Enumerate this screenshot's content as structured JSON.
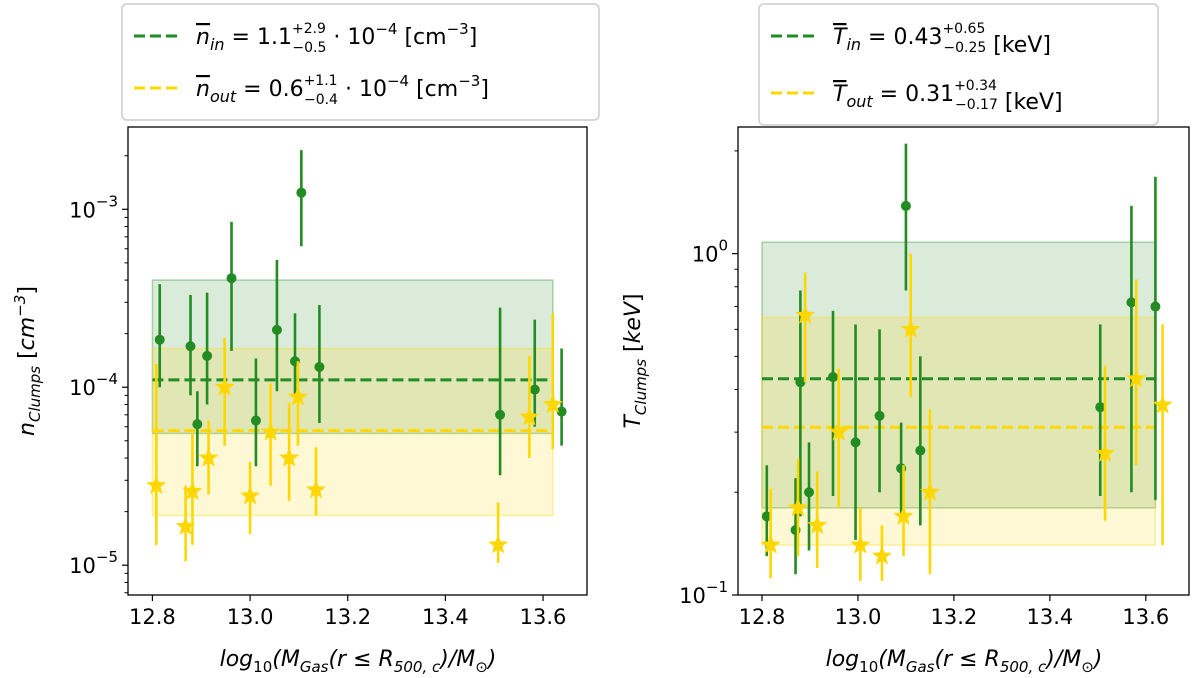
{
  "chart_data": [
    {
      "type": "scatter",
      "name": "density",
      "xlabel": "log10(MGas(r ≤ R500,c)/M⊙)",
      "ylabel": "nClumps [cm−3]",
      "yscale": "log",
      "xlim": [
        12.75,
        13.69
      ],
      "ylim": [
        6.8e-06,
        0.0029
      ],
      "xticks": [
        12.8,
        13.0,
        13.2,
        13.4,
        13.6
      ],
      "xtick_labels": [
        "12.8",
        "13.0",
        "13.2",
        "13.4",
        "13.6"
      ],
      "yticks": [
        1e-05,
        0.0001,
        0.001
      ],
      "ytick_labels": [
        {
          "base": "10",
          "exp": "−5"
        },
        {
          "base": "10",
          "exp": "−4"
        },
        {
          "base": "10",
          "exp": "−3"
        }
      ],
      "series": [
        {
          "name": "in",
          "color": "#228b22",
          "marker": "circle",
          "mean": 0.00011,
          "band": [
            5.5e-05,
            0.0004
          ],
          "band_x": [
            12.8,
            13.62
          ],
          "points": [
            {
              "x": 12.815,
              "y": 0.000185,
              "lo": 0.0001,
              "hi": 0.00038
            },
            {
              "x": 12.878,
              "y": 0.00017,
              "lo": 9e-05,
              "hi": 0.00033
            },
            {
              "x": 12.892,
              "y": 6.2e-05,
              "lo": 3.6e-05,
              "hi": 9.5e-05
            },
            {
              "x": 12.912,
              "y": 0.00015,
              "lo": 8e-05,
              "hi": 0.00034
            },
            {
              "x": 12.962,
              "y": 0.00041,
              "lo": 0.00016,
              "hi": 0.00085
            },
            {
              "x": 13.012,
              "y": 6.5e-05,
              "lo": 3.6e-05,
              "hi": 0.000145
            },
            {
              "x": 13.055,
              "y": 0.00021,
              "lo": 9.5e-05,
              "hi": 0.00052
            },
            {
              "x": 13.092,
              "y": 0.00014,
              "lo": 9e-05,
              "hi": 0.00026
            },
            {
              "x": 13.105,
              "y": 0.00124,
              "lo": 0.00062,
              "hi": 0.00215
            },
            {
              "x": 13.142,
              "y": 0.00013,
              "lo": 6.3e-05,
              "hi": 0.00029
            },
            {
              "x": 13.512,
              "y": 7e-05,
              "lo": 3.2e-05,
              "hi": 0.00028
            },
            {
              "x": 13.583,
              "y": 9.7e-05,
              "lo": 6e-05,
              "hi": 0.00024
            },
            {
              "x": 13.638,
              "y": 7.3e-05,
              "lo": 4.7e-05,
              "hi": 0.000165
            }
          ]
        },
        {
          "name": "out",
          "color": "#ffd700",
          "marker": "star",
          "mean": 5.7e-05,
          "band": [
            1.9e-05,
            0.000165
          ],
          "band_x": [
            12.8,
            13.62
          ],
          "points": [
            {
              "x": 12.808,
              "y": 2.8e-05,
              "lo": 1.3e-05,
              "hi": 0.000135
            },
            {
              "x": 12.868,
              "y": 1.65e-05,
              "lo": 1.05e-05,
              "hi": 2.8e-05
            },
            {
              "x": 12.882,
              "y": 2.6e-05,
              "lo": 1.3e-05,
              "hi": 5.5e-05
            },
            {
              "x": 12.915,
              "y": 4e-05,
              "lo": 2.5e-05,
              "hi": 6.5e-05
            },
            {
              "x": 12.948,
              "y": 0.0001,
              "lo": 4.7e-05,
              "hi": 0.00019
            },
            {
              "x": 13.0,
              "y": 2.45e-05,
              "lo": 1.5e-05,
              "hi": 3.8e-05
            },
            {
              "x": 13.042,
              "y": 5.6e-05,
              "lo": 2.8e-05,
              "hi": 0.000105
            },
            {
              "x": 13.08,
              "y": 4e-05,
              "lo": 2.3e-05,
              "hi": 8.2e-05
            },
            {
              "x": 13.098,
              "y": 8.8e-05,
              "lo": 4.7e-05,
              "hi": 0.00014
            },
            {
              "x": 13.135,
              "y": 2.65e-05,
              "lo": 1.9e-05,
              "hi": 4.6e-05
            },
            {
              "x": 13.508,
              "y": 1.3e-05,
              "lo": 1.03e-05,
              "hi": 2.25e-05
            },
            {
              "x": 13.572,
              "y": 6.8e-05,
              "lo": 4e-05,
              "hi": 0.00015
            },
            {
              "x": 13.62,
              "y": 8e-05,
              "lo": 4.5e-05,
              "hi": 0.00026
            }
          ]
        }
      ],
      "legend": {
        "position": "top-center",
        "entries": [
          {
            "series": "in",
            "var": "n",
            "sub": "in",
            "eq": " = 1.1",
            "sup": "+2.9",
            "sub2": "−0.5",
            "tail": " · 10",
            "exp": "−4",
            "unit": " [cm",
            "unit_exp": "−3",
            "close": "]"
          },
          {
            "series": "out",
            "var": "n",
            "sub": "out",
            "eq": " = 0.6",
            "sup": "+1.1",
            "sub2": "−0.4",
            "tail": " · 10",
            "exp": "−4",
            "unit": " [cm",
            "unit_exp": "−3",
            "close": "]"
          }
        ]
      }
    },
    {
      "type": "scatter",
      "name": "temperature",
      "xlabel": "log10(MGas(r ≤ R500,c)/M⊙)",
      "ylabel": "TClumps [keV]",
      "yscale": "log",
      "xlim": [
        12.75,
        13.69
      ],
      "ylim": [
        0.1,
        2.35
      ],
      "xticks": [
        12.8,
        13.0,
        13.2,
        13.4,
        13.6
      ],
      "xtick_labels": [
        "12.8",
        "13.0",
        "13.2",
        "13.4",
        "13.6"
      ],
      "yticks": [
        0.1,
        1
      ],
      "ytick_labels": [
        {
          "base": "10",
          "exp": "−1"
        },
        {
          "base": "10",
          "exp": "0"
        }
      ],
      "series": [
        {
          "name": "in",
          "color": "#228b22",
          "marker": "circle",
          "mean": 0.43,
          "band": [
            0.18,
            1.08
          ],
          "band_x": [
            12.8,
            13.62
          ],
          "points": [
            {
              "x": 12.81,
              "y": 0.17,
              "lo": 0.13,
              "hi": 0.24
            },
            {
              "x": 12.87,
              "y": 0.155,
              "lo": 0.115,
              "hi": 0.22
            },
            {
              "x": 12.88,
              "y": 0.42,
              "lo": 0.17,
              "hi": 0.78
            },
            {
              "x": 12.898,
              "y": 0.2,
              "lo": 0.135,
              "hi": 0.28
            },
            {
              "x": 12.948,
              "y": 0.435,
              "lo": 0.195,
              "hi": 0.68
            },
            {
              "x": 12.995,
              "y": 0.28,
              "lo": 0.145,
              "hi": 0.62
            },
            {
              "x": 13.045,
              "y": 0.335,
              "lo": 0.2,
              "hi": 0.6
            },
            {
              "x": 13.09,
              "y": 0.235,
              "lo": 0.165,
              "hi": 0.32
            },
            {
              "x": 13.1,
              "y": 1.38,
              "lo": 0.78,
              "hi": 2.1
            },
            {
              "x": 13.13,
              "y": 0.265,
              "lo": 0.16,
              "hi": 0.5
            },
            {
              "x": 13.505,
              "y": 0.355,
              "lo": 0.195,
              "hi": 0.62
            },
            {
              "x": 13.57,
              "y": 0.72,
              "lo": 0.2,
              "hi": 1.38
            },
            {
              "x": 13.62,
              "y": 0.7,
              "lo": 0.19,
              "hi": 1.68
            }
          ]
        },
        {
          "name": "out",
          "color": "#ffd700",
          "marker": "star",
          "mean": 0.31,
          "band": [
            0.14,
            0.65
          ],
          "band_x": [
            12.8,
            13.62
          ],
          "points": [
            {
              "x": 12.818,
              "y": 0.14,
              "lo": 0.112,
              "hi": 0.205
            },
            {
              "x": 12.875,
              "y": 0.18,
              "lo": 0.13,
              "hi": 0.25
            },
            {
              "x": 12.89,
              "y": 0.66,
              "lo": 0.42,
              "hi": 0.88
            },
            {
              "x": 12.915,
              "y": 0.16,
              "lo": 0.12,
              "hi": 0.23
            },
            {
              "x": 12.96,
              "y": 0.3,
              "lo": 0.18,
              "hi": 0.46
            },
            {
              "x": 13.005,
              "y": 0.14,
              "lo": 0.11,
              "hi": 0.18
            },
            {
              "x": 13.05,
              "y": 0.13,
              "lo": 0.11,
              "hi": 0.16
            },
            {
              "x": 13.095,
              "y": 0.17,
              "lo": 0.13,
              "hi": 0.24
            },
            {
              "x": 13.11,
              "y": 0.6,
              "lo": 0.38,
              "hi": 1.0
            },
            {
              "x": 13.15,
              "y": 0.2,
              "lo": 0.115,
              "hi": 0.35
            },
            {
              "x": 13.515,
              "y": 0.26,
              "lo": 0.165,
              "hi": 0.47
            },
            {
              "x": 13.58,
              "y": 0.43,
              "lo": 0.24,
              "hi": 0.84
            },
            {
              "x": 13.635,
              "y": 0.36,
              "lo": 0.14,
              "hi": 0.62
            }
          ]
        }
      ],
      "legend": {
        "position": "top-center",
        "entries": [
          {
            "series": "in",
            "var": "T",
            "sub": "in",
            "eq": " = 0.43",
            "sup": "+0.65",
            "sub2": "−0.25",
            "tail": "",
            "exp": "",
            "unit": " [keV]",
            "unit_exp": "",
            "close": ""
          },
          {
            "series": "out",
            "var": "T",
            "sub": "out",
            "eq": " = 0.31",
            "sup": "+0.34",
            "sub2": "−0.17",
            "tail": "",
            "exp": "",
            "unit": " [keV]",
            "unit_exp": "",
            "close": ""
          }
        ]
      }
    }
  ]
}
